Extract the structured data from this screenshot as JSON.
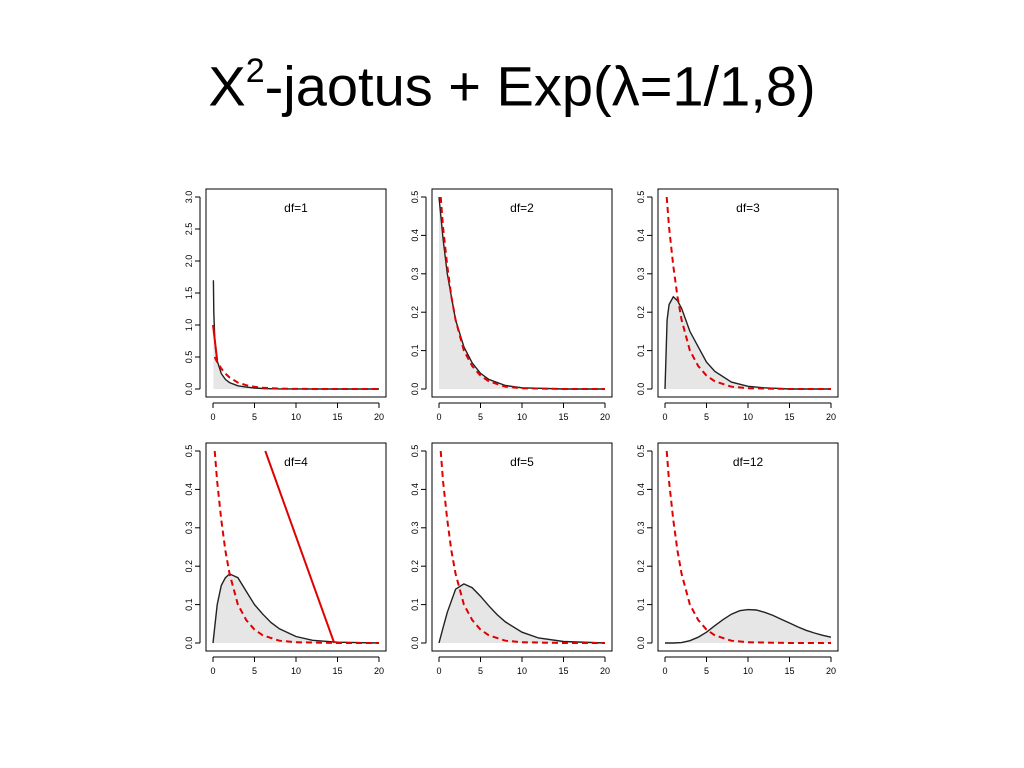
{
  "slide": {
    "title_main": "X",
    "title_sup": "2",
    "title_rest": "-jaotus + Exp(λ=1/1,8)"
  },
  "colors": {
    "density_line": "#222222",
    "density_fill": "#e6e6e6",
    "exp_dashed": "#e00000",
    "red_line": "#e00000",
    "axis": "#000000"
  },
  "chart_data": [
    {
      "type": "area",
      "title": "df=1",
      "df": 1,
      "xlim": [
        0,
        20
      ],
      "ylim": [
        0,
        3.0
      ],
      "xticks": [
        0,
        5,
        10,
        15,
        20
      ],
      "yticks": [
        0.0,
        0.5,
        1.0,
        1.5,
        2.0,
        2.5,
        3.0
      ],
      "ylabel": "",
      "series": [
        {
          "kind": "chi2-density",
          "x": [
            0.05,
            0.1,
            0.2,
            0.3,
            0.5,
            1,
            1.5,
            2,
            3,
            4,
            5,
            6,
            8,
            10,
            15,
            20
          ],
          "y": [
            1.7,
            1.2,
            0.81,
            0.63,
            0.44,
            0.24,
            0.15,
            0.1,
            0.05,
            0.03,
            0.015,
            0.008,
            0.002,
            0.001,
            0.0,
            0.0
          ]
        },
        {
          "kind": "exp-dashed",
          "x": [
            0.2,
            0.5,
            1,
            1.5,
            2,
            3,
            4,
            5,
            6,
            8,
            10,
            15,
            20
          ],
          "y": [
            0.5,
            0.42,
            0.32,
            0.24,
            0.18,
            0.1,
            0.06,
            0.035,
            0.02,
            0.006,
            0.002,
            0.0,
            0.0
          ]
        },
        {
          "kind": "red-solid",
          "x": [
            0,
            0.5
          ],
          "y": [
            1.0,
            0.45
          ]
        }
      ]
    },
    {
      "type": "area",
      "title": "df=2",
      "df": 2,
      "xlim": [
        0,
        20
      ],
      "ylim": [
        0,
        0.5
      ],
      "xticks": [
        0,
        5,
        10,
        15,
        20
      ],
      "yticks": [
        0.0,
        0.1,
        0.2,
        0.3,
        0.4,
        0.5
      ],
      "ylabel": "",
      "series": [
        {
          "kind": "chi2-density",
          "x": [
            0,
            0.5,
            1,
            1.5,
            2,
            3,
            4,
            5,
            6,
            8,
            10,
            15,
            20
          ],
          "y": [
            0.5,
            0.39,
            0.3,
            0.24,
            0.18,
            0.11,
            0.068,
            0.041,
            0.025,
            0.009,
            0.003,
            0.0,
            0.0
          ]
        },
        {
          "kind": "exp-dashed",
          "x": [
            0.2,
            0.5,
            1,
            1.5,
            2,
            3,
            4,
            5,
            6,
            8,
            10,
            15,
            20
          ],
          "y": [
            0.5,
            0.42,
            0.32,
            0.24,
            0.18,
            0.1,
            0.06,
            0.035,
            0.02,
            0.006,
            0.002,
            0.0,
            0.0
          ]
        }
      ]
    },
    {
      "type": "area",
      "title": "df=3",
      "df": 3,
      "xlim": [
        0,
        20
      ],
      "ylim": [
        0,
        0.5
      ],
      "xticks": [
        0,
        5,
        10,
        15,
        20
      ],
      "yticks": [
        0.0,
        0.1,
        0.2,
        0.3,
        0.4,
        0.5
      ],
      "ylabel": "",
      "series": [
        {
          "kind": "chi2-density",
          "x": [
            0,
            0.25,
            0.5,
            1,
            1.5,
            2,
            3,
            4,
            5,
            6,
            8,
            10,
            12,
            15,
            20
          ],
          "y": [
            0.0,
            0.18,
            0.22,
            0.24,
            0.23,
            0.21,
            0.15,
            0.11,
            0.07,
            0.046,
            0.018,
            0.007,
            0.003,
            0.0,
            0.0
          ]
        },
        {
          "kind": "exp-dashed",
          "x": [
            0.2,
            0.5,
            1,
            1.5,
            2,
            3,
            4,
            5,
            6,
            8,
            10,
            15,
            20
          ],
          "y": [
            0.5,
            0.42,
            0.32,
            0.24,
            0.18,
            0.1,
            0.06,
            0.035,
            0.02,
            0.006,
            0.002,
            0.0,
            0.0
          ]
        }
      ]
    },
    {
      "type": "area",
      "title": "df=4",
      "df": 4,
      "xlim": [
        0,
        20
      ],
      "ylim": [
        0,
        0.5
      ],
      "xticks": [
        0,
        5,
        10,
        15,
        20
      ],
      "yticks": [
        0.0,
        0.1,
        0.2,
        0.3,
        0.4,
        0.5
      ],
      "ylabel": "",
      "series": [
        {
          "kind": "chi2-density",
          "x": [
            0,
            0.5,
            1,
            1.5,
            2,
            3,
            4,
            5,
            6,
            7,
            8,
            10,
            12,
            15,
            20
          ],
          "y": [
            0.0,
            0.1,
            0.15,
            0.17,
            0.18,
            0.17,
            0.135,
            0.1,
            0.075,
            0.053,
            0.037,
            0.017,
            0.007,
            0.002,
            0.0
          ]
        },
        {
          "kind": "exp-dashed",
          "x": [
            0.2,
            0.5,
            1,
            1.5,
            2,
            3,
            4,
            5,
            6,
            8,
            10,
            15,
            20
          ],
          "y": [
            0.5,
            0.42,
            0.32,
            0.24,
            0.18,
            0.1,
            0.06,
            0.035,
            0.02,
            0.006,
            0.002,
            0.0,
            0.0
          ]
        },
        {
          "kind": "red-solid",
          "x": [
            6.3,
            14.6
          ],
          "y": [
            0.5,
            0.0
          ]
        }
      ]
    },
    {
      "type": "area",
      "title": "df=5",
      "df": 5,
      "xlim": [
        0,
        20
      ],
      "ylim": [
        0,
        0.5
      ],
      "xticks": [
        0,
        5,
        10,
        15,
        20
      ],
      "yticks": [
        0.0,
        0.1,
        0.2,
        0.3,
        0.4,
        0.5
      ],
      "ylabel": "",
      "series": [
        {
          "kind": "chi2-density",
          "x": [
            0,
            0.5,
            1,
            2,
            3,
            4,
            5,
            6,
            7,
            8,
            10,
            12,
            15,
            20
          ],
          "y": [
            0.0,
            0.04,
            0.08,
            0.14,
            0.154,
            0.144,
            0.122,
            0.097,
            0.074,
            0.055,
            0.028,
            0.013,
            0.004,
            0.0
          ]
        },
        {
          "kind": "exp-dashed",
          "x": [
            0.2,
            0.5,
            1,
            1.5,
            2,
            3,
            4,
            5,
            6,
            8,
            10,
            15,
            20
          ],
          "y": [
            0.5,
            0.42,
            0.32,
            0.24,
            0.18,
            0.1,
            0.06,
            0.035,
            0.02,
            0.006,
            0.002,
            0.0,
            0.0
          ]
        }
      ]
    },
    {
      "type": "area",
      "title": "df=12",
      "df": 12,
      "xlim": [
        0,
        20
      ],
      "ylim": [
        0,
        0.5
      ],
      "xticks": [
        0,
        5,
        10,
        15,
        20
      ],
      "yticks": [
        0.0,
        0.1,
        0.2,
        0.3,
        0.4,
        0.5
      ],
      "ylabel": "",
      "series": [
        {
          "kind": "chi2-density",
          "x": [
            0,
            1,
            2,
            3,
            4,
            5,
            6,
            7,
            8,
            9,
            10,
            11,
            12,
            13,
            14,
            15,
            16,
            17,
            18,
            19,
            20
          ],
          "y": [
            0.0,
            0.0,
            0.001,
            0.006,
            0.015,
            0.028,
            0.045,
            0.061,
            0.075,
            0.084,
            0.087,
            0.086,
            0.08,
            0.072,
            0.062,
            0.052,
            0.042,
            0.033,
            0.026,
            0.02,
            0.015
          ]
        },
        {
          "kind": "exp-dashed",
          "x": [
            0.2,
            0.5,
            1,
            1.5,
            2,
            3,
            4,
            5,
            6,
            8,
            10,
            15,
            20
          ],
          "y": [
            0.5,
            0.42,
            0.32,
            0.24,
            0.18,
            0.1,
            0.06,
            0.035,
            0.02,
            0.006,
            0.002,
            0.0,
            0.0
          ]
        }
      ]
    }
  ]
}
